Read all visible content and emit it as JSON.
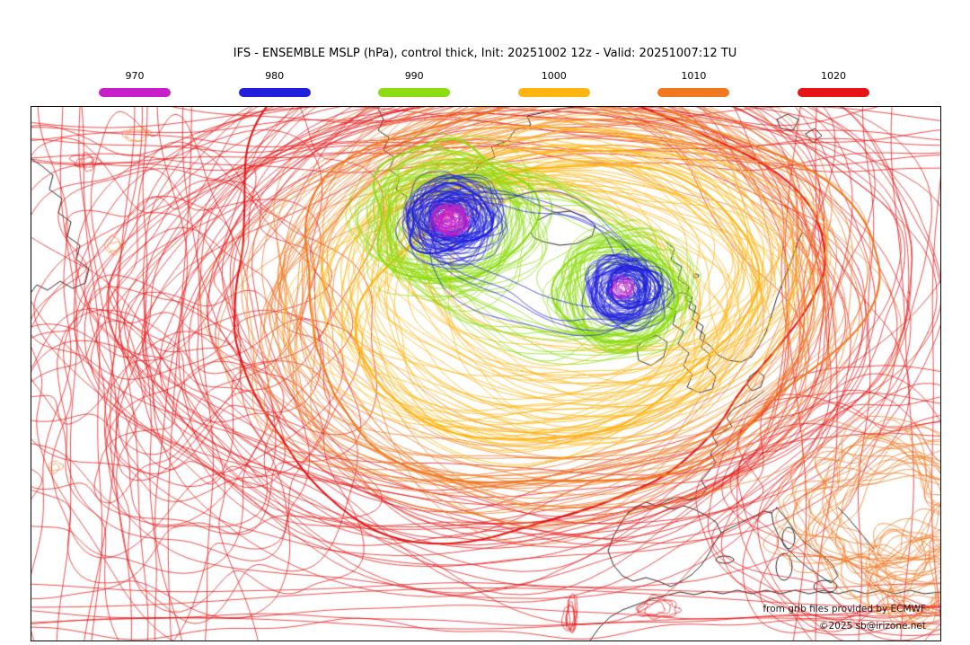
{
  "title": "IFS - ENSEMBLE MSLP (hPa), control thick, Init: 20251002 12z - Valid: 20251007:12 TU",
  "legend": {
    "items": [
      {
        "label": "970",
        "color": "#c820c8"
      },
      {
        "label": "980",
        "color": "#2020dc"
      },
      {
        "label": "990",
        "color": "#8cdc10"
      },
      {
        "label": "1000",
        "color": "#ffb410"
      },
      {
        "label": "1010",
        "color": "#f07820"
      },
      {
        "label": "1020",
        "color": "#e61414"
      }
    ]
  },
  "map": {
    "region": "North Atlantic / Europe",
    "attribution_line1": "from grib files provided by ECMWF",
    "attribution_line2": "©2025 sb@irizone.net"
  },
  "chart_data": {
    "type": "ensemble-contour-map",
    "field": "MSLP (hPa)",
    "model": "IFS ENSEMBLE",
    "init": "20251002 12z",
    "valid": "20251007:12 TU",
    "contour_style": "spaghetti ensemble members, control member thick",
    "contour_levels_hpa": [
      970,
      980,
      990,
      1000,
      1010,
      1020
    ],
    "level_colors": {
      "970": "#c820c8",
      "980": "#2020dc",
      "990": "#8cdc10",
      "1000": "#ffb410",
      "1010": "#f07820",
      "1020": "#e61414"
    },
    "features": [
      {
        "type": "low",
        "min_contour_hpa": 970,
        "location": "south of Greenland"
      },
      {
        "type": "low",
        "min_contour_hpa": 970,
        "location": "northwest of Ireland / Scotland"
      },
      {
        "type": "high-pressure ridge",
        "contour_hpa": 1020,
        "location": "western Atlantic and map periphery"
      },
      {
        "type": "dense 1010 cluster",
        "location": "southeast corner (eastern Mediterranean)"
      }
    ]
  }
}
